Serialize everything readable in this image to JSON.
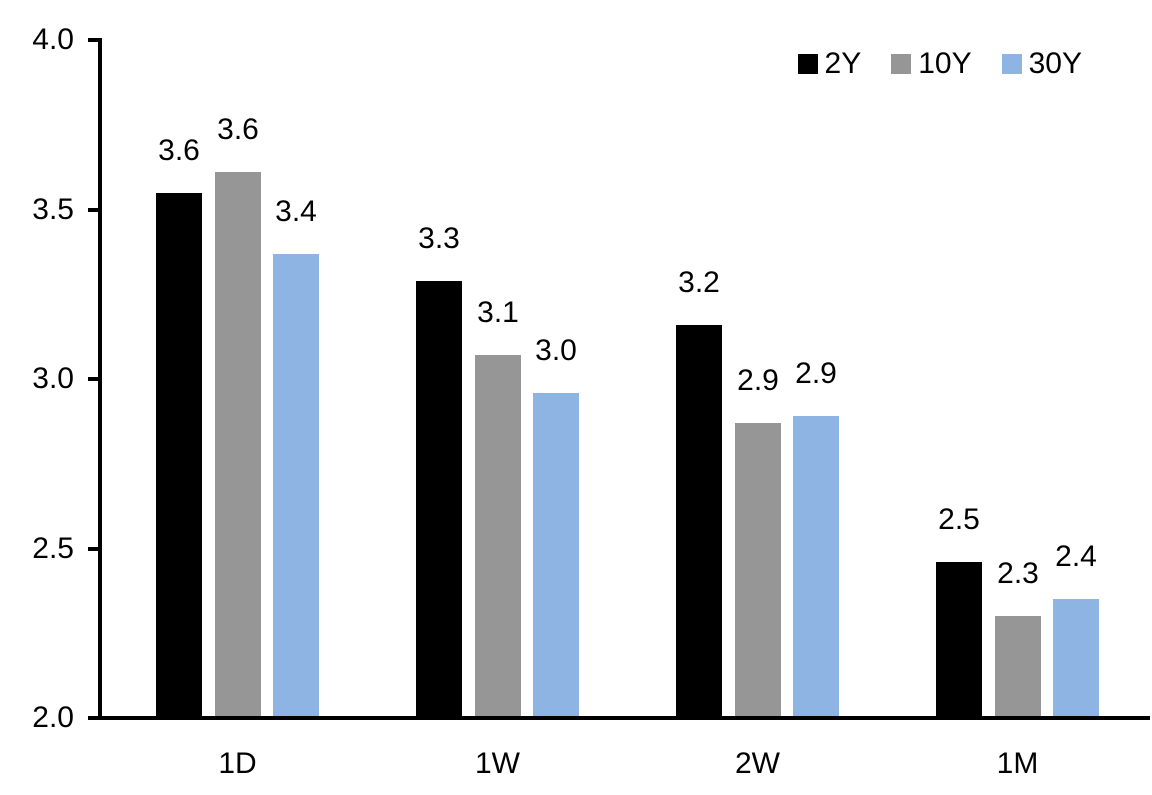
{
  "chart_data": {
    "type": "bar",
    "title": "",
    "xlabel": "",
    "ylabel": "",
    "categories": [
      "1D",
      "1W",
      "2W",
      "1M"
    ],
    "series": [
      {
        "name": "2Y",
        "color": "#000000",
        "values": [
          3.55,
          3.29,
          3.16,
          2.46
        ],
        "labels": [
          "3.6",
          "3.3",
          "3.2",
          "2.5"
        ]
      },
      {
        "name": "10Y",
        "color": "#969696",
        "values": [
          3.61,
          3.07,
          2.87,
          2.3
        ],
        "labels": [
          "3.6",
          "3.1",
          "2.9",
          "2.3"
        ]
      },
      {
        "name": "30Y",
        "color": "#8EB4E3",
        "values": [
          3.37,
          2.96,
          2.89,
          2.35
        ],
        "labels": [
          "3.4",
          "3.0",
          "2.9",
          "2.4"
        ]
      }
    ],
    "ylim": [
      2.0,
      4.0
    ],
    "yticks": [
      {
        "label": "4.0",
        "value": 4.0
      },
      {
        "label": "3.5",
        "value": 3.5
      },
      {
        "label": "3.0",
        "value": 3.0
      },
      {
        "label": "2.5",
        "value": 2.5
      },
      {
        "label": "2.0",
        "value": 2.0
      }
    ],
    "grid": "off",
    "legend_position": "top-right",
    "data_labels": "on"
  }
}
